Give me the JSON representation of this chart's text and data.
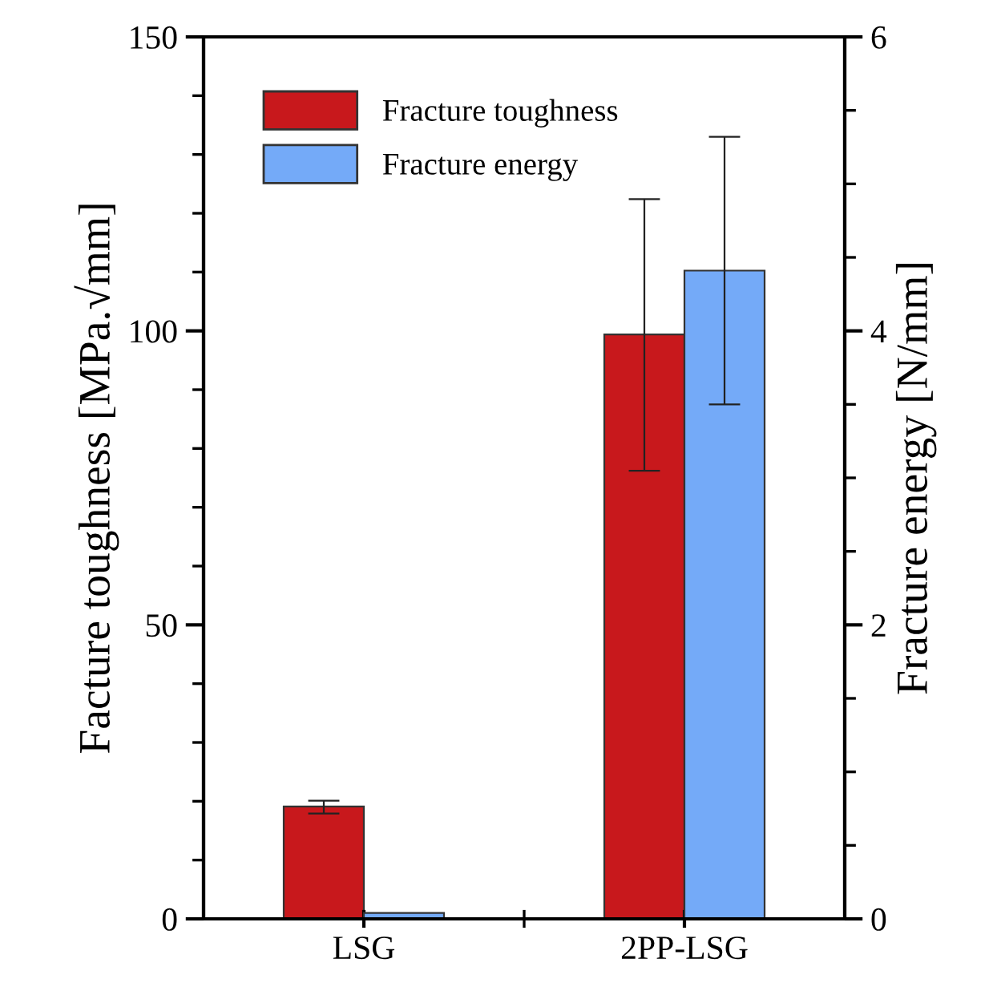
{
  "chart_data": {
    "type": "bar",
    "categories": [
      "LSG",
      "2PP-LSG"
    ],
    "ylabel": "Facture toughness [MPa.√mm]",
    "y2label": "Fracture energy [N/mm]",
    "series": [
      {
        "name": "Fracture toughness",
        "color": "#c8181c",
        "values": [
          19.1,
          99.4
        ],
        "errors": [
          [
            17.9,
            20.1
          ],
          [
            76.2,
            122.4
          ]
        ]
      },
      {
        "name": "Fracture energy",
        "color": "#74aaf8",
        "axis": "y2",
        "values": [
          0.04,
          4.41
        ],
        "errors": [
          null,
          [
            3.5,
            5.32
          ]
        ]
      }
    ],
    "ylim": [
      0,
      150
    ],
    "yticks": [
      0,
      {
        "value": 10,
        "label": null
      },
      {
        "value": 20,
        "label": null
      },
      {
        "value": 30,
        "label": null
      },
      {
        "value": 40,
        "label": null
      },
      50,
      {
        "value": 60,
        "label": null
      },
      {
        "value": 70,
        "label": null
      },
      {
        "value": 80,
        "label": null
      },
      {
        "value": 90,
        "label": null
      },
      100,
      {
        "value": 110,
        "label": null
      },
      {
        "value": 120,
        "label": null
      },
      {
        "value": 130,
        "label": null
      },
      {
        "value": 140,
        "label": null
      },
      150
    ],
    "y2lim": [
      0,
      6
    ],
    "y2ticks": [
      0,
      {
        "value": 0.5,
        "label": null
      },
      {
        "value": 1,
        "label": null
      },
      {
        "value": 1.5,
        "label": null
      },
      2,
      {
        "value": 2.5,
        "label": null
      },
      {
        "value": 3,
        "label": null
      },
      {
        "value": 3.5,
        "label": null
      },
      4,
      {
        "value": 4.5,
        "label": null
      },
      {
        "value": 5,
        "label": null
      },
      {
        "value": 5.5,
        "label": null
      },
      6
    ],
    "legend": "top left",
    "grid": false
  }
}
